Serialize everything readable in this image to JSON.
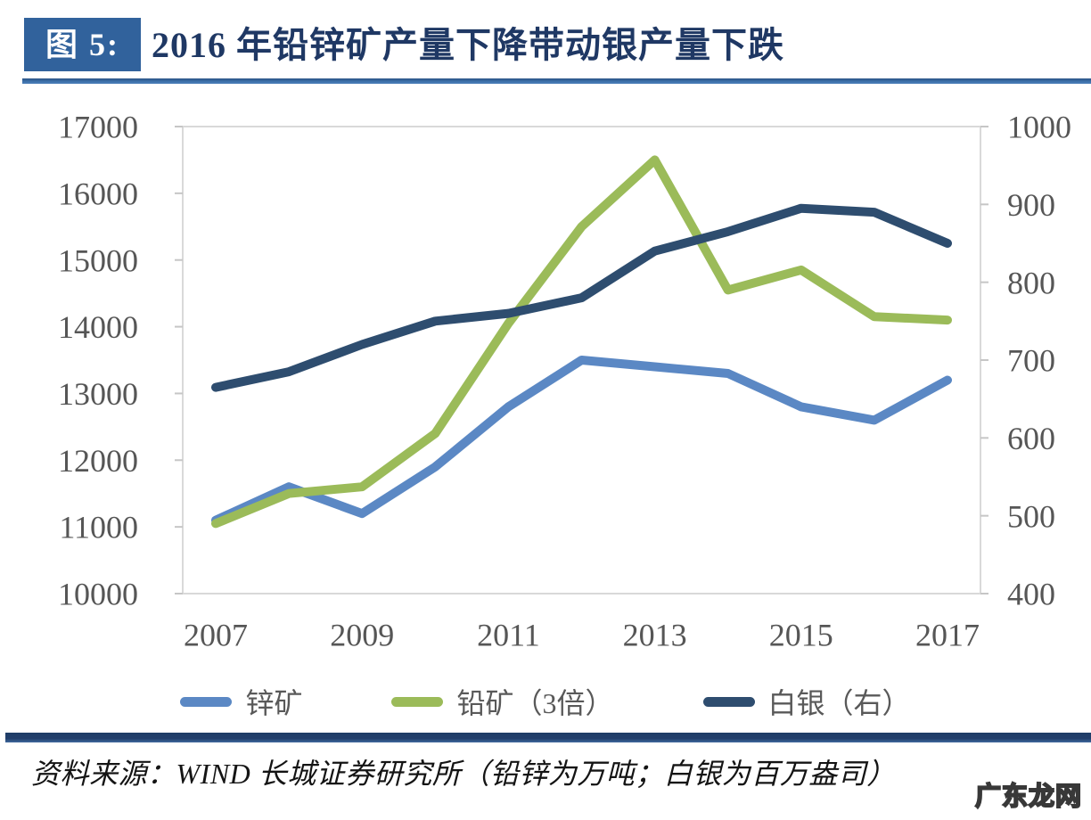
{
  "header": {
    "figure_label": "图 5:",
    "title": "2016 年铅锌矿产量下降带动银产量下跌"
  },
  "chart_data": {
    "type": "line",
    "title": "2016 年铅锌矿产量下降带动银产量下跌",
    "x": [
      2007,
      2008,
      2009,
      2010,
      2011,
      2012,
      2013,
      2014,
      2015,
      2016,
      2017
    ],
    "x_tick_labels": [
      "2007",
      "2009",
      "2011",
      "2013",
      "2015",
      "2017"
    ],
    "left_axis": {
      "min": 10000,
      "max": 17000,
      "ticks": [
        17000,
        16000,
        15000,
        14000,
        13000,
        12000,
        11000,
        10000
      ],
      "unit": "万吨"
    },
    "right_axis": {
      "min": 400,
      "max": 1000,
      "ticks": [
        1000,
        900,
        800,
        700,
        600,
        500,
        400
      ],
      "unit": "百万盎司"
    },
    "series": [
      {
        "key": "zinc",
        "name": "锌矿",
        "axis": "left",
        "color": "#5B88C4",
        "values": [
          11100,
          11600,
          11200,
          11900,
          12800,
          13500,
          13400,
          13300,
          12800,
          12600,
          13200
        ]
      },
      {
        "key": "lead",
        "name": "铅矿（3倍）",
        "axis": "left",
        "color": "#9BBB59",
        "values": [
          11050,
          11500,
          11600,
          12400,
          14050,
          15500,
          16500,
          14550,
          14850,
          14150,
          14100
        ]
      },
      {
        "key": "silver",
        "name": "白银（右）",
        "axis": "right",
        "color": "#2E4D6F",
        "values": [
          665,
          685,
          720,
          750,
          760,
          780,
          840,
          865,
          895,
          890,
          850
        ]
      }
    ],
    "grid": false,
    "legend_position": "bottom",
    "style": {
      "border_color": "#D9D9D9",
      "tick_color": "#C6C6C6",
      "axis_label_color": "#565656",
      "line_width": 10
    }
  },
  "footer": {
    "source": "资料来源：WIND 长城证券研究所（铅锌为万吨；白银为百万盎司）",
    "watermark": "广东龙网"
  }
}
